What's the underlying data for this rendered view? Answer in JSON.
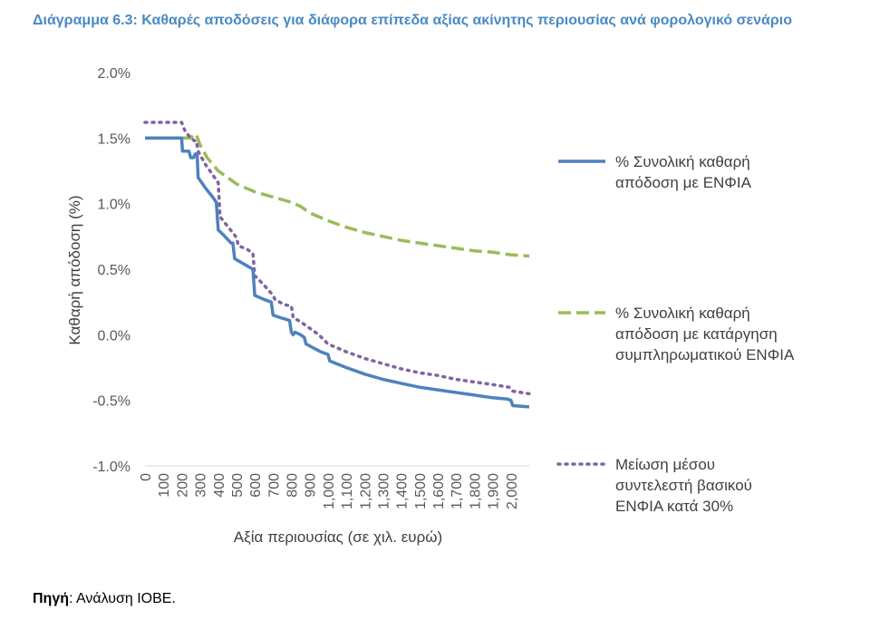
{
  "title": "Διάγραμμα 6.3: Καθαρές αποδόσεις για διάφορα επίπεδα αξίας ακίνητης περιουσίας ανά φορολογικό σενάριο",
  "source": {
    "label": "Πηγή",
    "text": ": Ανάλυση ΙΟΒΕ."
  },
  "chart_data": {
    "type": "line",
    "xlabel": "Αξία περιουσίας (σε χιλ. ευρώ)",
    "ylabel": "Καθαρή απόδοση (%)",
    "xlim": [
      0,
      2100
    ],
    "ylim": [
      -1.0,
      2.0
    ],
    "x_ticks": [
      0,
      100,
      200,
      300,
      400,
      500,
      600,
      700,
      800,
      900,
      1000,
      1100,
      1200,
      1300,
      1400,
      1500,
      1600,
      1700,
      1800,
      1900,
      2000
    ],
    "x_tick_labels": [
      "0",
      "100",
      "200",
      "300",
      "400",
      "500",
      "600",
      "700",
      "800",
      "900",
      "1,000",
      "1,100",
      "1,200",
      "1,300",
      "1,400",
      "1,500",
      "1,600",
      "1,700",
      "1,800",
      "1,900",
      "2,000"
    ],
    "y_ticks": [
      2.0,
      1.5,
      1.0,
      0.5,
      0.0,
      -0.5,
      -1.0
    ],
    "y_tick_labels": [
      "2.0%",
      "1.5%",
      "1.0%",
      "0.5%",
      "0.0%",
      "-0.5%",
      "-1.0%"
    ],
    "grid": false,
    "legend_position": "right",
    "series": [
      {
        "name": "% Συνολική καθαρή απόδοση με ΕΝΦΙΑ",
        "name_lines": [
          "% Συνολική καθαρή",
          "απόδοση με ΕΝΦΙΑ"
        ],
        "color": "#4f81bd",
        "style": "solid",
        "points": [
          [
            0,
            1.5
          ],
          [
            200,
            1.5
          ],
          [
            205,
            1.4
          ],
          [
            240,
            1.4
          ],
          [
            250,
            1.35
          ],
          [
            265,
            1.35
          ],
          [
            275,
            1.38
          ],
          [
            285,
            1.38
          ],
          [
            290,
            1.2
          ],
          [
            330,
            1.12
          ],
          [
            370,
            1.05
          ],
          [
            390,
            1.01
          ],
          [
            400,
            0.8
          ],
          [
            430,
            0.76
          ],
          [
            470,
            0.7
          ],
          [
            480,
            0.7
          ],
          [
            490,
            0.58
          ],
          [
            540,
            0.54
          ],
          [
            590,
            0.5
          ],
          [
            600,
            0.3
          ],
          [
            650,
            0.27
          ],
          [
            690,
            0.25
          ],
          [
            700,
            0.15
          ],
          [
            740,
            0.13
          ],
          [
            790,
            0.11
          ],
          [
            800,
            0.02
          ],
          [
            810,
            0.0
          ],
          [
            820,
            0.02
          ],
          [
            850,
            0.0
          ],
          [
            870,
            -0.02
          ],
          [
            880,
            -0.07
          ],
          [
            920,
            -0.1
          ],
          [
            960,
            -0.13
          ],
          [
            1000,
            -0.15
          ],
          [
            1010,
            -0.2
          ],
          [
            1100,
            -0.25
          ],
          [
            1200,
            -0.3
          ],
          [
            1300,
            -0.34
          ],
          [
            1400,
            -0.37
          ],
          [
            1500,
            -0.4
          ],
          [
            1600,
            -0.42
          ],
          [
            1700,
            -0.44
          ],
          [
            1800,
            -0.46
          ],
          [
            1900,
            -0.48
          ],
          [
            1980,
            -0.49
          ],
          [
            2000,
            -0.5
          ],
          [
            2010,
            -0.54
          ],
          [
            2100,
            -0.55
          ]
        ]
      },
      {
        "name": "% Συνολική καθαρή απόδοση με κατάργηση συμπληρωματικού ΕΝΦΙΑ",
        "name_lines": [
          "% Συνολική καθαρή",
          "απόδοση με κατάργηση",
          "συμπληρωματικού ΕΝΦΙΑ"
        ],
        "color": "#9bbb59",
        "style": "dashed",
        "points": [
          [
            0,
            1.5
          ],
          [
            250,
            1.5
          ],
          [
            270,
            1.53
          ],
          [
            280,
            1.53
          ],
          [
            300,
            1.45
          ],
          [
            340,
            1.35
          ],
          [
            400,
            1.25
          ],
          [
            450,
            1.2
          ],
          [
            500,
            1.15
          ],
          [
            600,
            1.09
          ],
          [
            700,
            1.05
          ],
          [
            800,
            1.01
          ],
          [
            850,
            0.98
          ],
          [
            900,
            0.93
          ],
          [
            1000,
            0.87
          ],
          [
            1100,
            0.82
          ],
          [
            1200,
            0.78
          ],
          [
            1300,
            0.75
          ],
          [
            1400,
            0.72
          ],
          [
            1500,
            0.7
          ],
          [
            1600,
            0.68
          ],
          [
            1700,
            0.66
          ],
          [
            1800,
            0.64
          ],
          [
            1900,
            0.63
          ],
          [
            2000,
            0.61
          ],
          [
            2100,
            0.6
          ]
        ]
      },
      {
        "name": "Μείωση μέσου συντελεστή βασικού ΕΝΦΙΑ κατά 30%",
        "name_lines": [
          "Μείωση μέσου",
          "συντελεστή βασικού",
          "ΕΝΦΙΑ κατά 30%"
        ],
        "color": "#8064a2",
        "style": "dotted",
        "points": [
          [
            0,
            1.62
          ],
          [
            200,
            1.62
          ],
          [
            220,
            1.55
          ],
          [
            250,
            1.5
          ],
          [
            270,
            1.48
          ],
          [
            280,
            1.48
          ],
          [
            290,
            1.4
          ],
          [
            330,
            1.3
          ],
          [
            380,
            1.2
          ],
          [
            400,
            1.16
          ],
          [
            410,
            0.9
          ],
          [
            450,
            0.83
          ],
          [
            490,
            0.76
          ],
          [
            500,
            0.74
          ],
          [
            510,
            0.68
          ],
          [
            560,
            0.65
          ],
          [
            590,
            0.62
          ],
          [
            600,
            0.45
          ],
          [
            650,
            0.38
          ],
          [
            700,
            0.3
          ],
          [
            710,
            0.27
          ],
          [
            760,
            0.23
          ],
          [
            800,
            0.22
          ],
          [
            810,
            0.13
          ],
          [
            850,
            0.1
          ],
          [
            900,
            0.05
          ],
          [
            950,
            0.0
          ],
          [
            1000,
            -0.07
          ],
          [
            1100,
            -0.13
          ],
          [
            1200,
            -0.18
          ],
          [
            1300,
            -0.22
          ],
          [
            1400,
            -0.26
          ],
          [
            1500,
            -0.29
          ],
          [
            1600,
            -0.31
          ],
          [
            1700,
            -0.34
          ],
          [
            1800,
            -0.36
          ],
          [
            1900,
            -0.38
          ],
          [
            1990,
            -0.4
          ],
          [
            2010,
            -0.43
          ],
          [
            2100,
            -0.45
          ]
        ]
      }
    ]
  }
}
